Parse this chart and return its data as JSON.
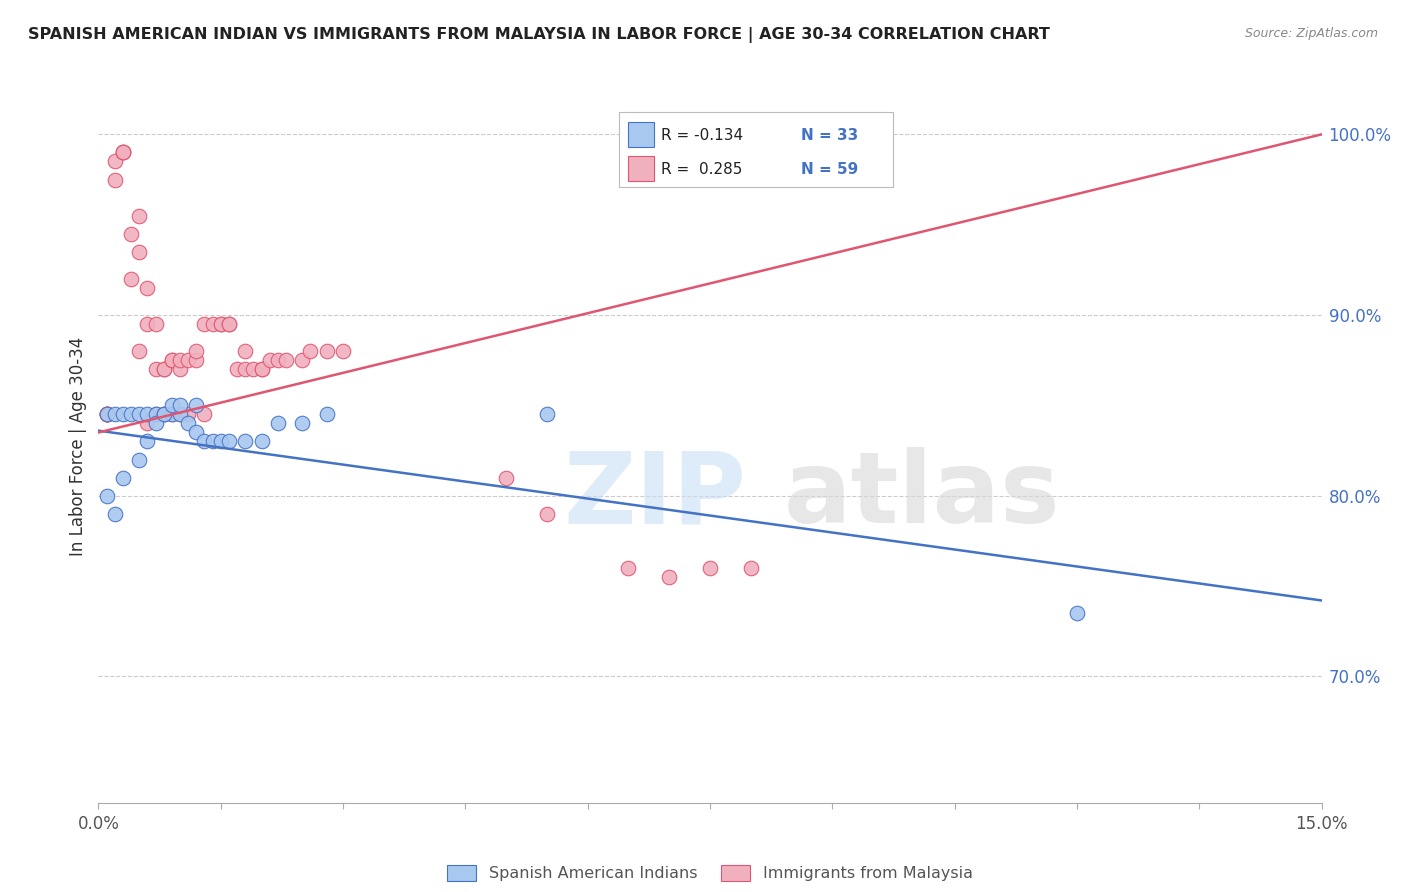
{
  "title": "SPANISH AMERICAN INDIAN VS IMMIGRANTS FROM MALAYSIA IN LABOR FORCE | AGE 30-34 CORRELATION CHART",
  "source": "Source: ZipAtlas.com",
  "ylabel": "In Labor Force | Age 30-34",
  "right_yticks": [
    "100.0%",
    "90.0%",
    "80.0%",
    "70.0%"
  ],
  "right_ytick_vals": [
    1.0,
    0.9,
    0.8,
    0.7
  ],
  "xmin": 0.0,
  "xmax": 0.15,
  "ymin": 0.63,
  "ymax": 1.025,
  "legend_r1": "R = -0.134",
  "legend_n1": "N = 33",
  "legend_r2": "R =  0.285",
  "legend_n2": "N = 59",
  "color_blue": "#a8c8f0",
  "color_pink": "#f0b0be",
  "color_line_blue": "#4472c4",
  "color_line_pink": "#e05570",
  "blue_scatter_x": [
    0.001,
    0.002,
    0.003,
    0.004,
    0.005,
    0.006,
    0.007,
    0.008,
    0.009,
    0.01,
    0.011,
    0.012,
    0.013,
    0.014,
    0.015,
    0.016,
    0.018,
    0.02,
    0.022,
    0.025,
    0.001,
    0.002,
    0.003,
    0.005,
    0.006,
    0.007,
    0.008,
    0.009,
    0.01,
    0.012,
    0.028,
    0.055,
    0.12
  ],
  "blue_scatter_y": [
    0.845,
    0.845,
    0.845,
    0.845,
    0.845,
    0.845,
    0.845,
    0.845,
    0.845,
    0.845,
    0.84,
    0.835,
    0.83,
    0.83,
    0.83,
    0.83,
    0.83,
    0.83,
    0.84,
    0.84,
    0.8,
    0.79,
    0.81,
    0.82,
    0.83,
    0.84,
    0.845,
    0.85,
    0.85,
    0.85,
    0.845,
    0.845,
    0.735
  ],
  "pink_scatter_x": [
    0.001,
    0.001,
    0.001,
    0.001,
    0.002,
    0.002,
    0.003,
    0.003,
    0.003,
    0.004,
    0.004,
    0.005,
    0.005,
    0.005,
    0.006,
    0.006,
    0.007,
    0.007,
    0.008,
    0.008,
    0.009,
    0.009,
    0.01,
    0.01,
    0.011,
    0.012,
    0.012,
    0.013,
    0.014,
    0.015,
    0.015,
    0.016,
    0.016,
    0.017,
    0.018,
    0.018,
    0.019,
    0.02,
    0.02,
    0.021,
    0.022,
    0.023,
    0.025,
    0.026,
    0.028,
    0.03,
    0.006,
    0.007,
    0.008,
    0.009,
    0.01,
    0.011,
    0.013,
    0.05,
    0.055,
    0.065,
    0.07,
    0.075,
    0.08
  ],
  "pink_scatter_y": [
    0.845,
    0.845,
    0.845,
    0.845,
    0.975,
    0.985,
    0.99,
    0.99,
    0.99,
    0.945,
    0.92,
    0.955,
    0.935,
    0.88,
    0.915,
    0.895,
    0.895,
    0.87,
    0.87,
    0.87,
    0.875,
    0.875,
    0.87,
    0.875,
    0.875,
    0.875,
    0.88,
    0.895,
    0.895,
    0.895,
    0.895,
    0.895,
    0.895,
    0.87,
    0.88,
    0.87,
    0.87,
    0.87,
    0.87,
    0.875,
    0.875,
    0.875,
    0.875,
    0.88,
    0.88,
    0.88,
    0.84,
    0.845,
    0.845,
    0.845,
    0.845,
    0.845,
    0.845,
    0.81,
    0.79,
    0.76,
    0.755,
    0.76,
    0.76
  ],
  "blue_line_x": [
    0.0,
    0.15
  ],
  "blue_line_y": [
    0.836,
    0.742
  ],
  "pink_line_x": [
    0.0,
    0.15
  ],
  "pink_line_y": [
    0.835,
    1.0
  ],
  "xtick_positions": [
    0.0,
    0.015,
    0.03,
    0.045,
    0.06,
    0.075,
    0.09,
    0.105,
    0.12,
    0.135,
    0.15
  ],
  "grid_yticks": [
    1.0,
    0.9,
    0.8,
    0.7
  ]
}
